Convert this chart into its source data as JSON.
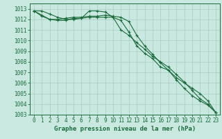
{
  "title": "Graphe pression niveau de la mer (hPa)",
  "bg_color": "#c8e8e0",
  "grid_color": "#a8ccc4",
  "line_color": "#1a6b3a",
  "spine_color": "#1a6b3a",
  "xlim": [
    -0.5,
    23.5
  ],
  "ylim": [
    1003,
    1013.5
  ],
  "yticks": [
    1003,
    1004,
    1005,
    1006,
    1007,
    1008,
    1009,
    1010,
    1011,
    1012,
    1013
  ],
  "xticks": [
    0,
    1,
    2,
    3,
    4,
    5,
    6,
    7,
    8,
    9,
    10,
    11,
    12,
    13,
    14,
    15,
    16,
    17,
    18,
    19,
    20,
    21,
    22,
    23
  ],
  "series": [
    [
      1012.8,
      1012.8,
      1012.5,
      1012.2,
      1012.0,
      1012.0,
      1012.1,
      1012.8,
      1012.8,
      1012.7,
      1012.2,
      1011.0,
      1010.5,
      1009.8,
      1009.2,
      1008.5,
      1008.0,
      1007.5,
      1006.8,
      1006.1,
      1005.3,
      1004.5,
      1004.0,
      1003.2
    ],
    [
      1012.8,
      1012.3,
      1012.0,
      1011.9,
      1011.9,
      1012.1,
      1012.1,
      1012.2,
      1012.2,
      1012.2,
      1012.2,
      1011.9,
      1010.8,
      1009.5,
      1008.8,
      1008.3,
      1007.5,
      1007.2,
      1006.5,
      1006.0,
      1005.5,
      1005.0,
      1004.3,
      1003.2
    ],
    [
      1012.8,
      1012.4,
      1012.0,
      1012.0,
      1012.1,
      1012.2,
      1012.2,
      1012.3,
      1012.3,
      1012.4,
      1012.3,
      1012.2,
      1011.8,
      1010.5,
      1009.5,
      1008.7,
      1007.9,
      1007.2,
      1006.3,
      1005.5,
      1004.8,
      1004.3,
      1003.9,
      1003.2
    ]
  ],
  "tick_fontsize": 5.5,
  "xlabel_fontsize": 6.5
}
